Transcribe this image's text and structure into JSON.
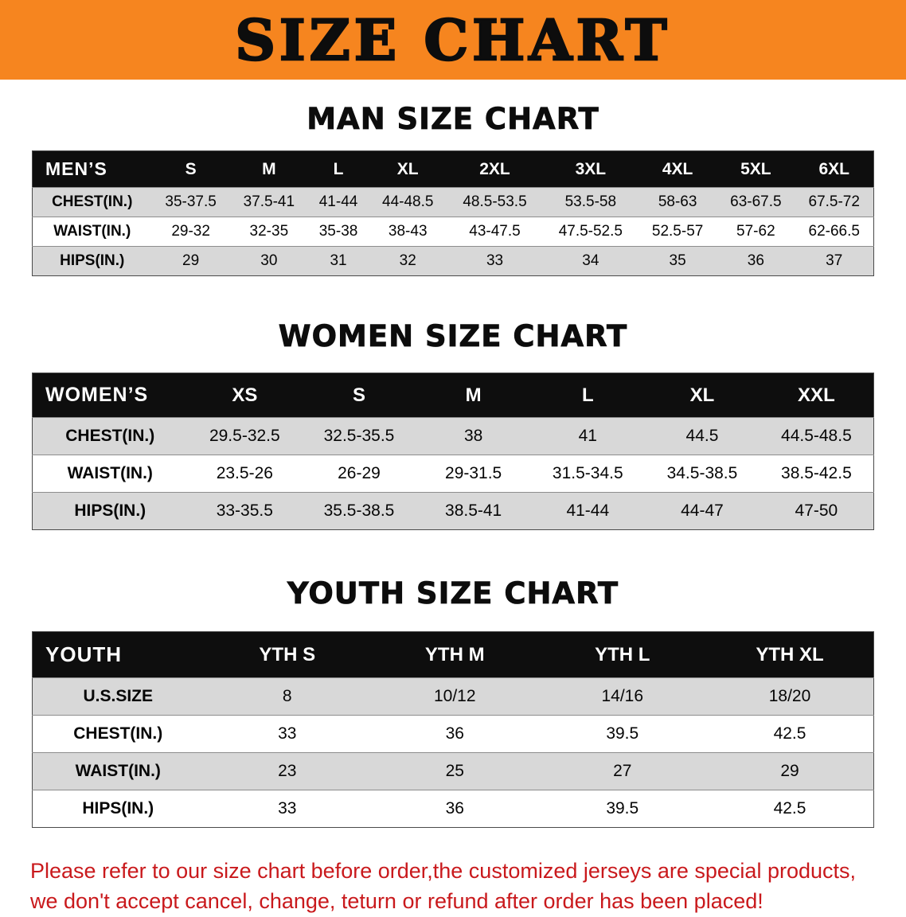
{
  "banner": {
    "title": "SIZE CHART"
  },
  "colors": {
    "banner_orange": "#f6851f",
    "header_black": "#0e0e0e",
    "stripe_gray": "#d8d8d8",
    "disclaimer_red": "#c9191c"
  },
  "chart_data": [
    {
      "type": "table",
      "title": "MAN SIZE CHART",
      "group_label": "MEN’S",
      "columns": [
        "S",
        "M",
        "L",
        "XL",
        "2XL",
        "3XL",
        "4XL",
        "5XL",
        "6XL"
      ],
      "rows": [
        {
          "label": "CHEST(IN.)",
          "values": [
            "35-37.5",
            "37.5-41",
            "41-44",
            "44-48.5",
            "48.5-53.5",
            "53.5-58",
            "58-63",
            "63-67.5",
            "67.5-72"
          ]
        },
        {
          "label": "WAIST(IN.)",
          "values": [
            "29-32",
            "32-35",
            "35-38",
            "38-43",
            "43-47.5",
            "47.5-52.5",
            "52.5-57",
            "57-62",
            "62-66.5"
          ]
        },
        {
          "label": "HIPS(IN.)",
          "values": [
            "29",
            "30",
            "31",
            "32",
            "33",
            "34",
            "35",
            "36",
            "37"
          ]
        }
      ]
    },
    {
      "type": "table",
      "title": "WOMEN SIZE CHART",
      "group_label": "WOMEN’S",
      "columns": [
        "XS",
        "S",
        "M",
        "L",
        "XL",
        "XXL"
      ],
      "rows": [
        {
          "label": "CHEST(IN.)",
          "values": [
            "29.5-32.5",
            "32.5-35.5",
            "38",
            "41",
            "44.5",
            "44.5-48.5"
          ]
        },
        {
          "label": "WAIST(IN.)",
          "values": [
            "23.5-26",
            "26-29",
            "29-31.5",
            "31.5-34.5",
            "34.5-38.5",
            "38.5-42.5"
          ]
        },
        {
          "label": "HIPS(IN.)",
          "values": [
            "33-35.5",
            "35.5-38.5",
            "38.5-41",
            "41-44",
            "44-47",
            "47-50"
          ]
        }
      ]
    },
    {
      "type": "table",
      "title": "YOUTH SIZE CHART",
      "group_label": "YOUTH",
      "columns": [
        "YTH S",
        "YTH M",
        "YTH L",
        "YTH XL"
      ],
      "rows": [
        {
          "label": "U.S.SIZE",
          "values": [
            "8",
            "10/12",
            "14/16",
            "18/20"
          ]
        },
        {
          "label": "CHEST(IN.)",
          "values": [
            "33",
            "36",
            "39.5",
            "42.5"
          ]
        },
        {
          "label": "WAIST(IN.)",
          "values": [
            "23",
            "25",
            "27",
            "29"
          ]
        },
        {
          "label": "HIPS(IN.)",
          "values": [
            "33",
            "36",
            "39.5",
            "42.5"
          ]
        }
      ]
    }
  ],
  "disclaimer": {
    "line1": "Please refer to our size chart before order,the customized jerseys are special products,",
    "line2": "we don't accept cancel, change, teturn or refund after order has been placed!"
  }
}
